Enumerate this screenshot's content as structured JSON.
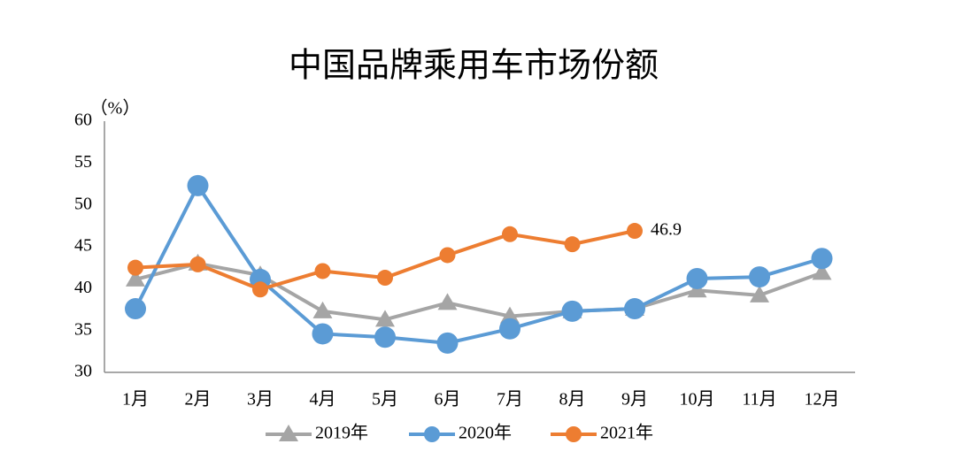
{
  "chart_data": {
    "type": "line",
    "title": "中国品牌乘用车市场份额",
    "y_label": "（%）",
    "categories": [
      "1月",
      "2月",
      "3月",
      "4月",
      "5月",
      "6月",
      "7月",
      "8月",
      "9月",
      "10月",
      "11月",
      "12月"
    ],
    "series": [
      {
        "name": "2019年",
        "color": "#a5a5a5",
        "marker": "triangle",
        "values": [
          41.1,
          43.0,
          41.6,
          37.3,
          36.3,
          38.3,
          36.7,
          37.3,
          37.6,
          39.8,
          39.2,
          41.9
        ]
      },
      {
        "name": "2020年",
        "color": "#5b9bd5",
        "marker": "circle",
        "values": [
          37.6,
          52.3,
          41.1,
          34.6,
          34.2,
          33.5,
          35.2,
          37.3,
          37.6,
          41.2,
          41.4,
          43.6
        ]
      },
      {
        "name": "2021年",
        "color": "#ed7d31",
        "marker": "circle",
        "values": [
          42.5,
          42.9,
          39.9,
          42.1,
          41.3,
          44.0,
          46.5,
          45.3,
          46.9,
          null,
          null,
          null
        ]
      }
    ],
    "ylim": [
      30,
      60
    ],
    "yticks": [
      30,
      35,
      40,
      45,
      50,
      55,
      60
    ],
    "grid": false,
    "legend": "bottom"
  }
}
